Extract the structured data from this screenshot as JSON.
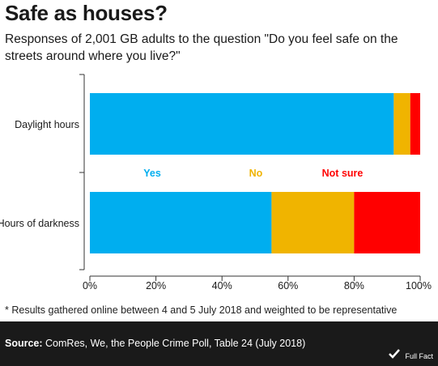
{
  "title": "Safe as houses?",
  "subtitle": "Responses of 2,001 GB adults to the question \"Do you feel safe on the streets around where you live?\"",
  "footnote": "* Results gathered online between 4 and 5 July 2018 and weighted to be representative",
  "source": {
    "label": "Source:",
    "text": "ComRes, We, the People Crime Poll, Table 24 (July 2018)"
  },
  "logo": {
    "text": "Full Fact",
    "icon": "full-fact-check-icon"
  },
  "colors": {
    "yes": "#00aeef",
    "no": "#f0b400",
    "not_sure": "#ff0000"
  },
  "chart_data": {
    "type": "bar",
    "orientation": "horizontal",
    "stacked": true,
    "categories": [
      "Daylight hours",
      "Hours of darkness"
    ],
    "series": [
      {
        "name": "Yes",
        "color": "#00aeef",
        "values": [
          92,
          55
        ]
      },
      {
        "name": "No",
        "color": "#f0b400",
        "values": [
          5,
          25
        ]
      },
      {
        "name": "Not sure",
        "color": "#ff0000",
        "values": [
          3,
          20
        ]
      }
    ],
    "xlim": [
      0,
      100
    ],
    "xticks": [
      "0%",
      "20%",
      "40%",
      "60%",
      "80%",
      "100%"
    ],
    "legend_placement": "between bars",
    "grid": false
  }
}
